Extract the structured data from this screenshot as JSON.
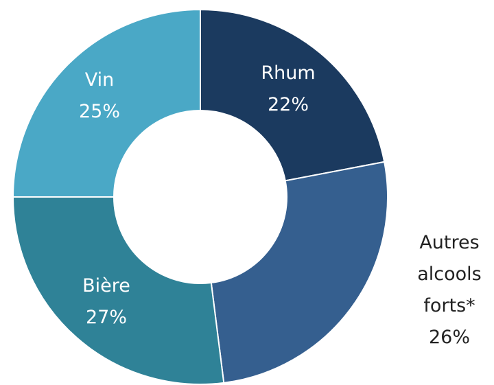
{
  "chart_data": {
    "type": "donut",
    "categories": [
      "Rhum",
      "Autres alcools forts*",
      "Bière",
      "Vin"
    ],
    "values": [
      22,
      26,
      27,
      25
    ],
    "value_labels": [
      "22%",
      "26%",
      "27%",
      "25%"
    ],
    "colors": [
      "#1b3a5f",
      "#355f8f",
      "#2f8297",
      "#4aa8c6"
    ]
  }
}
